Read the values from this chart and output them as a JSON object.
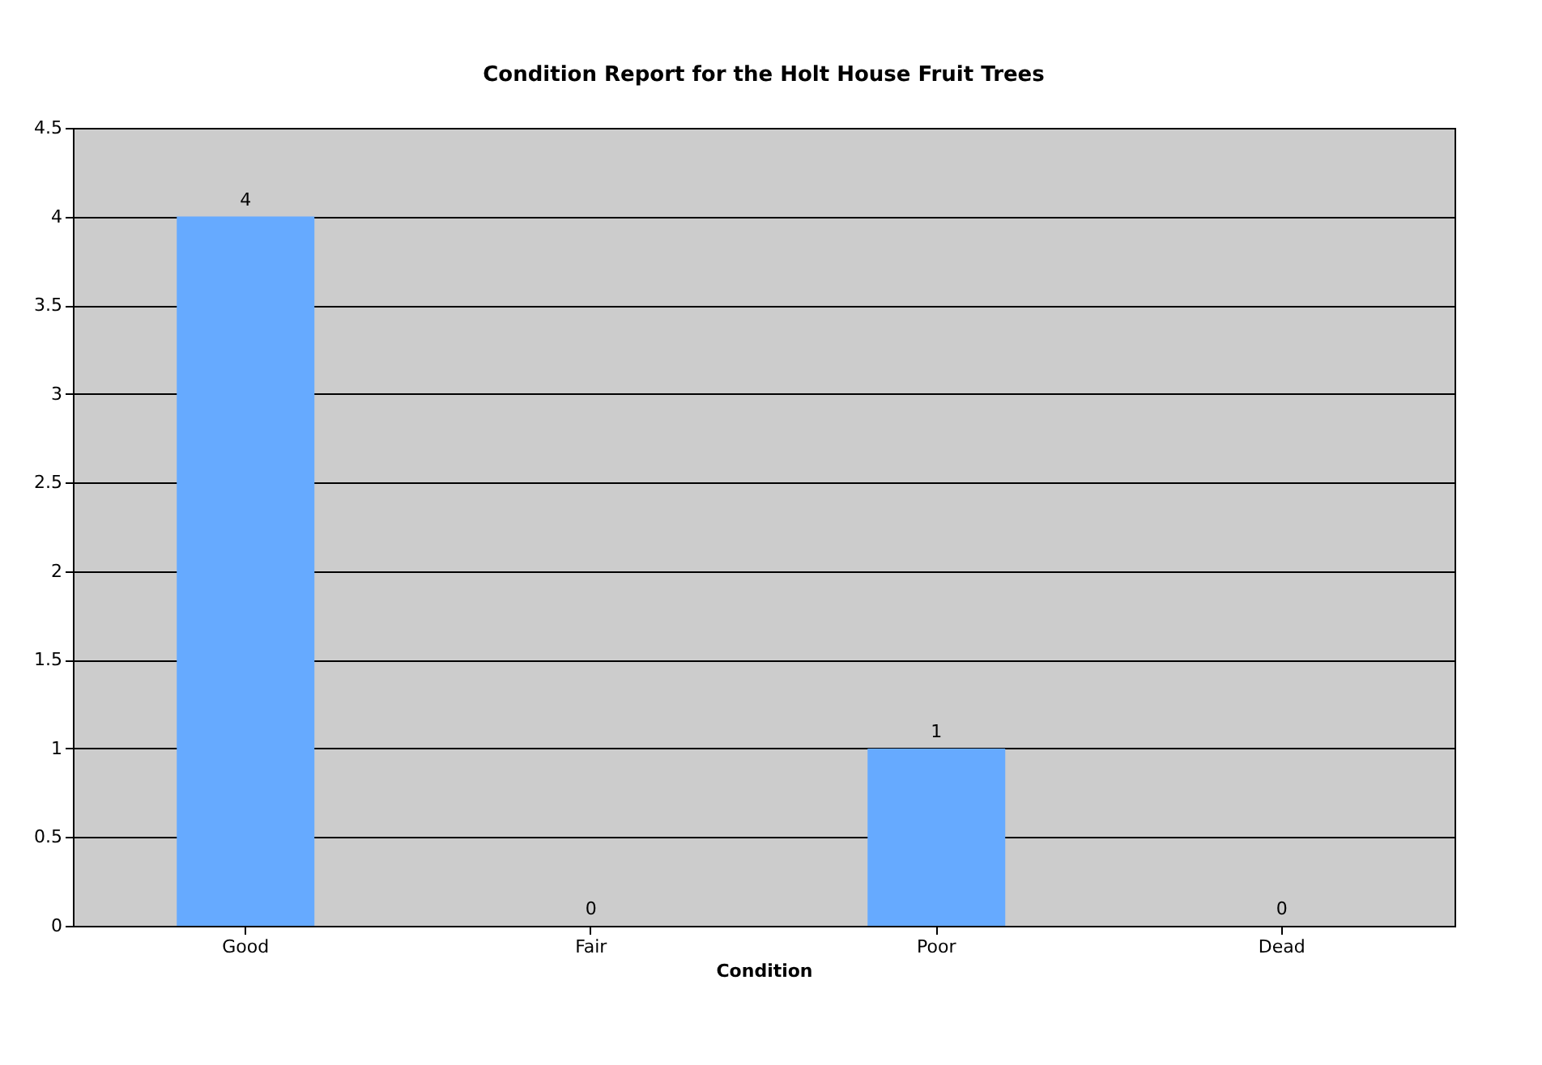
{
  "chart_data": {
    "type": "bar",
    "title": "Condition Report for the Holt House Fruit Trees",
    "xlabel": "Condition",
    "categories": [
      "Good",
      "Fair",
      "Poor",
      "Dead"
    ],
    "values": [
      4,
      0,
      1,
      0
    ],
    "color": "#66aaff",
    "ylim": [
      0,
      4.5
    ],
    "yticks": [
      0,
      0.5,
      1,
      1.5,
      2,
      2.5,
      3,
      3.5,
      4,
      4.5
    ],
    "grid": "y",
    "data_labels": true
  }
}
